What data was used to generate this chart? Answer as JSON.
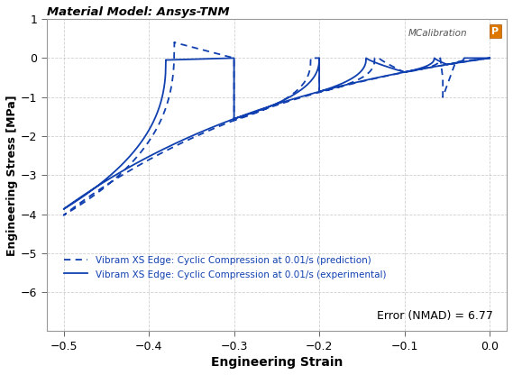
{
  "title": "Material Model: Ansys-TNM",
  "xlabel": "Engineering Strain",
  "ylabel": "Engineering Stress [MPa]",
  "xlim": [
    -0.52,
    0.02
  ],
  "ylim": [
    -7,
    1
  ],
  "xticks": [
    -0.5,
    -0.4,
    -0.3,
    -0.2,
    -0.1,
    0
  ],
  "yticks": [
    -6,
    -5,
    -4,
    -3,
    -2,
    -1,
    0,
    1
  ],
  "exp_color": "#1040b0",
  "pred_color": "#1040b0",
  "exp_lw": 1.3,
  "pred_lw": 1.3,
  "legend_exp": "Vibram XS Edge: Cyclic Compression at 0.01/s (experimental)",
  "legend_pred": "Vibram XS Edge: Cyclic Compression at 0.01/s (prediction)",
  "error_text": "Error (NMAD) = 6.77",
  "mcalibration_text": "MCalibration",
  "background_color": "#ffffff",
  "grid_color": "#bbbbbb"
}
